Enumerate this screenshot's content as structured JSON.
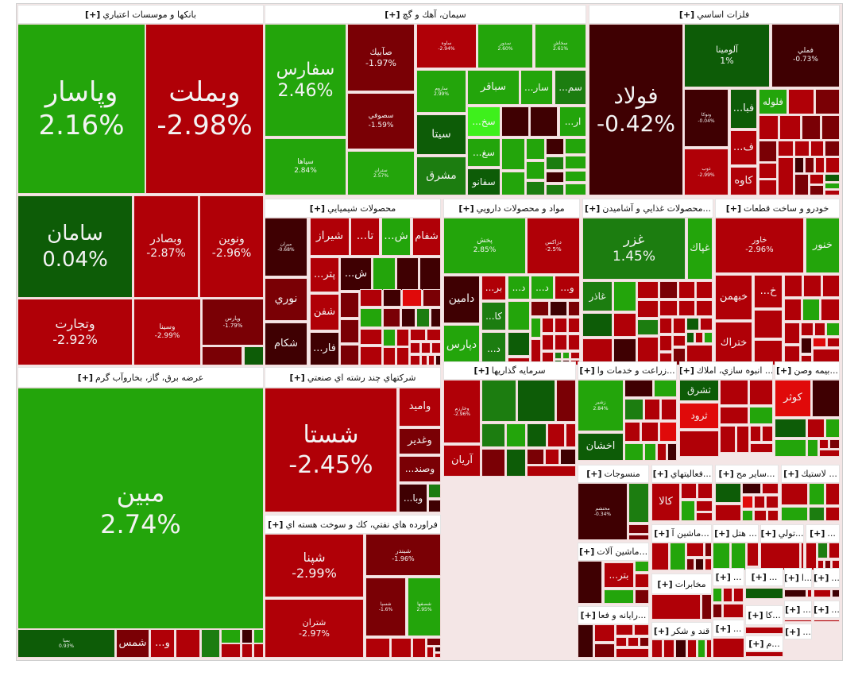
{
  "expand_label": "[+]",
  "colors": {
    "up": "#23a50b",
    "up_strong": "#0d5c07",
    "up_mid": "#1c7d10",
    "up_bright": "#3ef01c",
    "down": "#b00007",
    "down_mid": "#7a0005",
    "down_strong": "#3f0002",
    "down_bright": "#e00a0a"
  },
  "sectors": [
    {
      "title": "بانكها و موسسات اعتباري",
      "tiles": [
        {
          "symbol": "وپاسار",
          "change": "2.16%",
          "color": "#23a50b"
        },
        {
          "symbol": "وبملت",
          "change": "-2.98%",
          "color": "#b00007"
        },
        {
          "symbol": "سامان",
          "change": "0.04%",
          "color": "#0d5c07"
        },
        {
          "symbol": "وبصادر",
          "change": "-2.87%",
          "color": "#b00007"
        },
        {
          "symbol": "ونوين",
          "change": "-2.96%",
          "color": "#b00007"
        },
        {
          "symbol": "وتجارت",
          "change": "-2.92%",
          "color": "#b00007"
        },
        {
          "symbol": "وسينا",
          "change": "-2.99%",
          "color": "#b00007"
        },
        {
          "symbol": "وپارس",
          "change": "-1.79%",
          "color": "#7a0005"
        }
      ]
    },
    {
      "title": "عرضه برق، گاز، بخاروآب گرم",
      "tiles": [
        {
          "symbol": "مبين",
          "change": "2.74%",
          "color": "#23a50b"
        },
        {
          "symbol": "بميا",
          "change": "0.93%",
          "color": "#0d5c07"
        },
        {
          "symbol": "شمس",
          "change": "",
          "color": "#7a0005"
        },
        {
          "symbol": "...و",
          "change": "",
          "color": "#b00007"
        }
      ]
    },
    {
      "title": "سيمان، آهك و گچ",
      "tiles": [
        {
          "symbol": "سفارس",
          "change": "2.46%",
          "color": "#23a50b"
        },
        {
          "symbol": "سپاها",
          "change": "2.84%",
          "color": "#23a50b"
        },
        {
          "symbol": "صآبيك",
          "change": "-1.97%",
          "color": "#7a0005"
        },
        {
          "symbol": "سصوفي",
          "change": "-1.59%",
          "color": "#7a0005"
        },
        {
          "symbol": "ستران",
          "change": "2.57%",
          "color": "#23a50b"
        },
        {
          "symbol": "ساوه",
          "change": "-2.94%",
          "color": "#b00007"
        },
        {
          "symbol": "سدور",
          "change": "2.60%",
          "color": "#23a50b"
        },
        {
          "symbol": "سخاش",
          "change": "2.61%",
          "color": "#23a50b"
        },
        {
          "symbol": "ساروم",
          "change": "2.99%",
          "color": "#23a50b"
        },
        {
          "symbol": "سيتا",
          "change": "",
          "color": "#0d5c07"
        },
        {
          "symbol": "مشرق",
          "change": "",
          "color": "#1c7d10"
        },
        {
          "symbol": "سباقر",
          "change": "",
          "color": "#23a50b"
        },
        {
          "symbol": "...سار",
          "change": "",
          "color": "#23a50b"
        },
        {
          "symbol": "...سم",
          "change": "",
          "color": "#1c7d10"
        },
        {
          "symbol": "...سخ",
          "change": "",
          "color": "#3ef01c"
        },
        {
          "symbol": "...ار",
          "change": "",
          "color": "#23a50b"
        },
        {
          "symbol": "...سغ",
          "change": "",
          "color": "#23a50b"
        },
        {
          "symbol": "سفانو",
          "change": "",
          "color": "#0d5c07"
        }
      ]
    },
    {
      "title": "فلزات اساسي",
      "tiles": [
        {
          "symbol": "فولاد",
          "change": "-0.42%",
          "color": "#3f0002"
        },
        {
          "symbol": "آلومينا",
          "change": "1%",
          "color": "#0d5c07"
        },
        {
          "symbol": "فملي",
          "change": "-0.73%",
          "color": "#3f0002"
        },
        {
          "symbol": "ونوكا",
          "change": "-0.04%",
          "color": "#3f0002"
        },
        {
          "symbol": "ذوب",
          "change": "-2.99%",
          "color": "#b00007"
        },
        {
          "symbol": "...فبا",
          "change": "",
          "color": "#0d5c07"
        },
        {
          "symbol": "...ف",
          "change": "",
          "color": "#b00007"
        },
        {
          "symbol": "کاوه",
          "change": "",
          "color": "#b00007"
        },
        {
          "symbol": "فلوله",
          "change": "",
          "color": "#23a50b"
        }
      ]
    },
    {
      "title": "محصولات شيميايي",
      "tiles": [
        {
          "symbol": "ميران",
          "change": "-0.68%",
          "color": "#3f0002"
        },
        {
          "symbol": "نوري",
          "change": "",
          "color": "#7a0005"
        },
        {
          "symbol": "شكام",
          "change": "",
          "color": "#3f0002"
        },
        {
          "symbol": "شيراز",
          "change": "",
          "color": "#b00007"
        },
        {
          "symbol": "...تا",
          "change": "",
          "color": "#b00007"
        },
        {
          "symbol": "...ش",
          "change": "",
          "color": "#23a50b"
        },
        {
          "symbol": "شفام",
          "change": "",
          "color": "#b00007"
        },
        {
          "symbol": "...پتر",
          "change": "",
          "color": "#b00007"
        },
        {
          "symbol": "شفن",
          "change": "",
          "color": "#b00007"
        },
        {
          "symbol": "...فار",
          "change": "",
          "color": "#3f0002"
        },
        {
          "symbol": "...ش",
          "change": "",
          "color": "#3f0002"
        }
      ]
    },
    {
      "title": "مواد و محصولات دارويي",
      "tiles": [
        {
          "symbol": "پخش",
          "change": "2.85%",
          "color": "#23a50b"
        },
        {
          "symbol": "دزاكس",
          "change": "-2.5%",
          "color": "#b00007"
        },
        {
          "symbol": "دامين",
          "change": "",
          "color": "#3f0002"
        },
        {
          "symbol": "دپارس",
          "change": "",
          "color": "#23a50b"
        },
        {
          "symbol": "...بر",
          "change": "",
          "color": "#b00007"
        },
        {
          "symbol": "...كا",
          "change": "",
          "color": "#1c7d10"
        },
        {
          "symbol": "...د",
          "change": "",
          "color": "#1c7d10"
        },
        {
          "symbol": "...د",
          "change": "",
          "color": "#23a50b"
        },
        {
          "symbol": "...د",
          "change": "",
          "color": "#23a50b"
        },
        {
          "symbol": "...و",
          "change": "",
          "color": "#b00007"
        }
      ]
    },
    {
      "title": "...محصولات غذايي و آشاميدن",
      "tiles": [
        {
          "symbol": "غزر",
          "change": "1.45%",
          "color": "#1c7d10"
        },
        {
          "symbol": "غپاك",
          "change": "",
          "color": "#23a50b"
        },
        {
          "symbol": "غاذر",
          "change": "",
          "color": "#1c7d10"
        }
      ]
    },
    {
      "title": "خودرو و ساخت قطعات",
      "tiles": [
        {
          "symbol": "خاور",
          "change": "-2.96%",
          "color": "#b00007"
        },
        {
          "symbol": "خنور",
          "change": "",
          "color": "#23a50b"
        },
        {
          "symbol": "خبهمن",
          "change": "",
          "color": "#b00007"
        },
        {
          "symbol": "...خ",
          "change": "",
          "color": "#b00007"
        },
        {
          "symbol": "ختراك",
          "change": "",
          "color": "#b00007"
        }
      ]
    },
    {
      "title": "شركتهاي چند رشته اي صنعتي",
      "tiles": [
        {
          "symbol": "شستا",
          "change": "-2.45%",
          "color": "#b00007"
        },
        {
          "symbol": "واميد",
          "change": "",
          "color": "#b00007"
        },
        {
          "symbol": "وغدير",
          "change": "",
          "color": "#7a0005"
        },
        {
          "symbol": "...وصند",
          "change": "",
          "color": "#7a0005"
        },
        {
          "symbol": "...وبا",
          "change": "",
          "color": "#3f0002"
        }
      ]
    },
    {
      "title": "فراورده هاي نفتي، كك و سوخت هسته اي",
      "tiles": [
        {
          "symbol": "شپنا",
          "change": "-2.99%",
          "color": "#b00007"
        },
        {
          "symbol": "شتران",
          "change": "-2.97%",
          "color": "#b00007"
        },
        {
          "symbol": "شبندر",
          "change": "-1.96%",
          "color": "#7a0005"
        },
        {
          "symbol": "شسپا",
          "change": "-1.6%",
          "color": "#7a0005"
        },
        {
          "symbol": "شصفها",
          "change": "2.95%",
          "color": "#23a50b"
        }
      ]
    },
    {
      "title": "سرمايه گذاريها",
      "tiles": [
        {
          "symbol": "وخارزم",
          "change": "-2.96%",
          "color": "#b00007"
        },
        {
          "symbol": "آريان",
          "change": "",
          "color": "#b00007"
        }
      ]
    },
    {
      "title": "...زراعت و خدمات وا",
      "tiles": [
        {
          "symbol": "زشير",
          "change": "2.84%",
          "color": "#23a50b"
        },
        {
          "symbol": "اخشان",
          "change": "",
          "color": "#0d5c07"
        }
      ]
    },
    {
      "title": "... انبوه سازي، املاك",
      "tiles": [
        {
          "symbol": "ثشرق",
          "change": "",
          "color": "#0d5c07"
        },
        {
          "symbol": "ثرود",
          "change": "",
          "color": "#e00a0a"
        }
      ]
    },
    {
      "title": "...بيمه وصن",
      "tiles": [
        {
          "symbol": "كوثر",
          "change": "",
          "color": "#e00a0a"
        }
      ]
    },
    {
      "title": "منسوجات",
      "tiles": [
        {
          "symbol": "محتشم",
          "change": "-0.34%",
          "color": "#3f0002"
        }
      ]
    },
    {
      "title": "...فعاليتهاي",
      "tiles": [
        {
          "symbol": "كالا",
          "change": "",
          "color": "#b00007"
        }
      ]
    },
    {
      "title": "...ساير مح",
      "tiles": []
    },
    {
      "title": "... لاستيك",
      "tiles": []
    },
    {
      "title": "...ماشين آلات",
      "tiles": [
        {
          "symbol": "...بتر",
          "change": "",
          "color": "#b00007"
        }
      ]
    },
    {
      "title": "...رايانه و فعا",
      "tiles": []
    },
    {
      "title": "...ماشين آ",
      "tiles": []
    },
    {
      "title": "... هتل",
      "tiles": []
    },
    {
      "title": "...تولي",
      "tiles": []
    },
    {
      "title": "...",
      "tiles": []
    },
    {
      "title": "مخابرات",
      "tiles": []
    },
    {
      "title": "قند و شكر",
      "tiles": []
    },
    {
      "title": "...",
      "tiles": []
    },
    {
      "title": "...",
      "tiles": []
    },
    {
      "title": "...ا",
      "tiles": []
    },
    {
      "title": "...",
      "tiles": []
    },
    {
      "title": "...كا",
      "tiles": []
    },
    {
      "title": "...",
      "tiles": []
    },
    {
      "title": "...",
      "tiles": []
    },
    {
      "title": "...",
      "tiles": []
    },
    {
      "title": "...م",
      "tiles": []
    },
    {
      "title": "...",
      "tiles": []
    }
  ]
}
